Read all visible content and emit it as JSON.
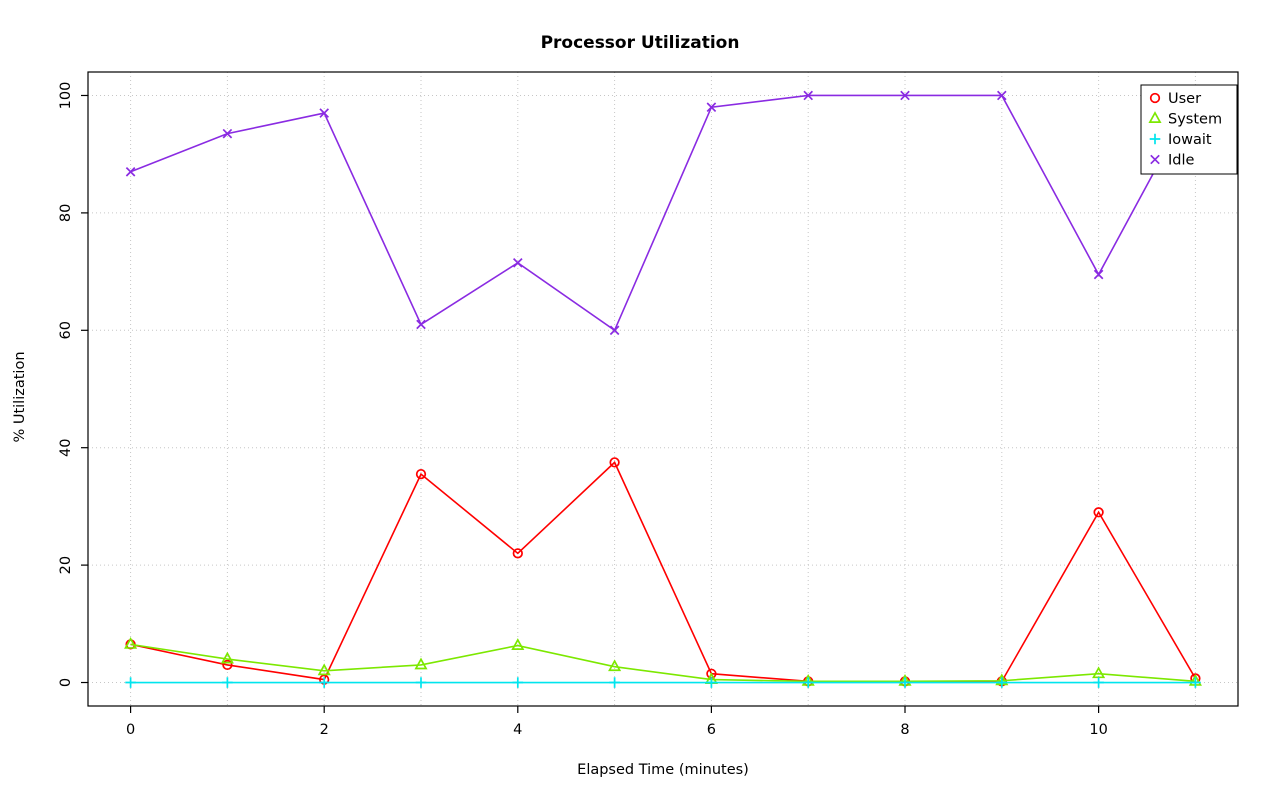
{
  "chart_data": {
    "type": "line",
    "title": "Processor Utilization",
    "xlabel": "Elapsed Time (minutes)",
    "ylabel": "% Utilization",
    "x": [
      0,
      1,
      2,
      3,
      4,
      5,
      6,
      7,
      8,
      9,
      10,
      11
    ],
    "xlim": [
      0,
      11
    ],
    "ylim": [
      0,
      100
    ],
    "x_ticks": [
      0,
      2,
      4,
      6,
      8,
      10
    ],
    "y_ticks": [
      0,
      20,
      40,
      60,
      80,
      100
    ],
    "x_grid": [
      0,
      1,
      2,
      3,
      4,
      5,
      6,
      7,
      8,
      9,
      10,
      11
    ],
    "y_grid": [
      0,
      20,
      40,
      60,
      80,
      100
    ],
    "grid": true,
    "legend_position": "top-right",
    "series": [
      {
        "name": "User",
        "color": "#FF0000",
        "marker": "circle",
        "values": [
          6.5,
          3.0,
          0.5,
          35.5,
          22.0,
          37.5,
          1.5,
          0.2,
          0.2,
          0.2,
          29.0,
          0.7
        ]
      },
      {
        "name": "System",
        "color": "#7CE800",
        "marker": "triangle",
        "values": [
          6.5,
          4.0,
          2.0,
          3.0,
          6.3,
          2.7,
          0.5,
          0.2,
          0.2,
          0.3,
          1.5,
          0.2
        ]
      },
      {
        "name": "Iowait",
        "color": "#00E5EE",
        "marker": "plus",
        "values": [
          0,
          0,
          0,
          0,
          0,
          0,
          0,
          0,
          0,
          0,
          0,
          0
        ]
      },
      {
        "name": "Idle",
        "color": "#8A2BE2",
        "marker": "x",
        "values": [
          87.0,
          93.5,
          97.0,
          61.0,
          71.5,
          60.0,
          98.0,
          100.0,
          100.0,
          100.0,
          69.5,
          100.0
        ]
      }
    ]
  }
}
